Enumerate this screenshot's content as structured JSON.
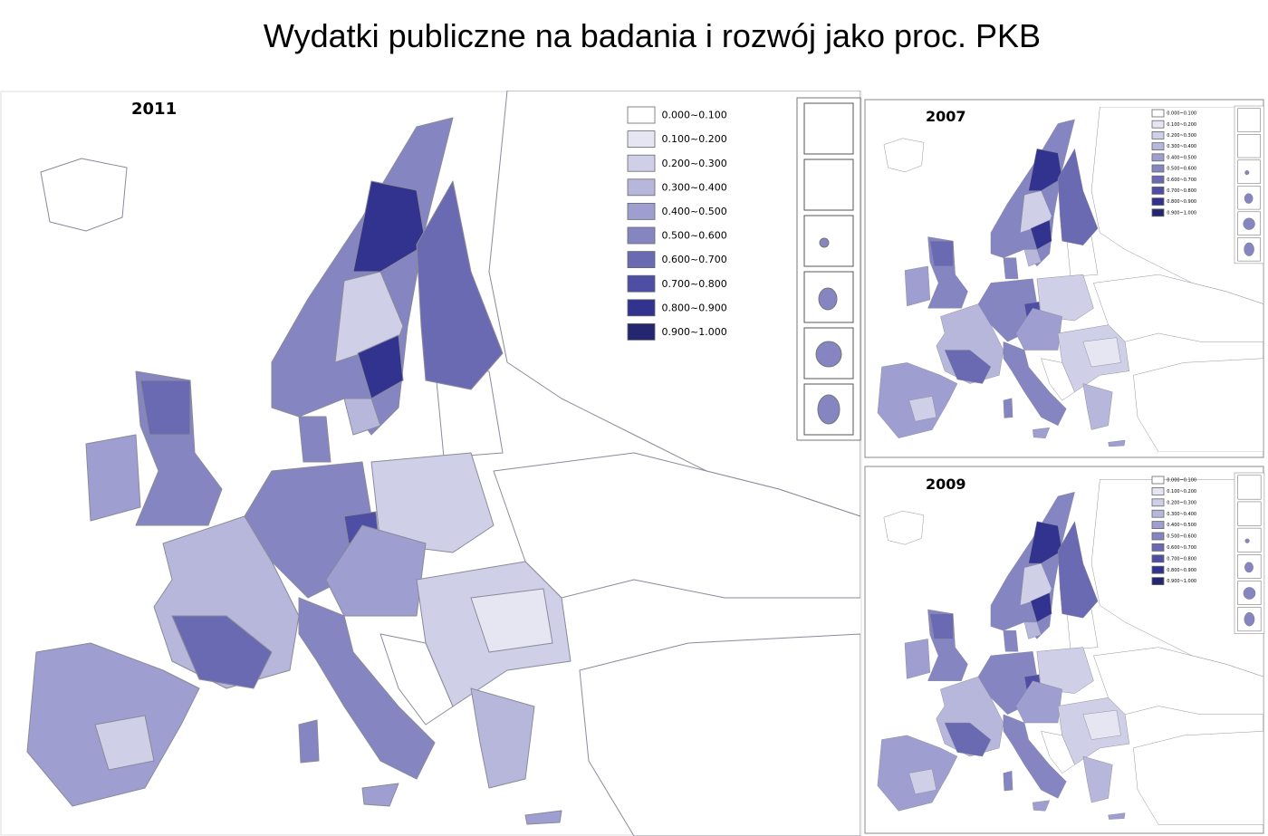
{
  "title": "Wydatki publiczne na badania i rozwój jako proc. PKB",
  "maps": [
    {
      "year": "2011"
    },
    {
      "year": "2007"
    },
    {
      "year": "2009"
    }
  ],
  "legend": [
    {
      "label": "0.000~0.100",
      "color": "#ffffff"
    },
    {
      "label": "0.100~0.200",
      "color": "#e6e6f3"
    },
    {
      "label": "0.200~0.300",
      "color": "#cfcfe8"
    },
    {
      "label": "0.300~0.400",
      "color": "#b7b7dc"
    },
    {
      "label": "0.400~0.500",
      "color": "#9e9ed0"
    },
    {
      "label": "0.500~0.600",
      "color": "#8585c2"
    },
    {
      "label": "0.600~0.700",
      "color": "#6a6ab3"
    },
    {
      "label": "0.700~0.800",
      "color": "#4e4ea4"
    },
    {
      "label": "0.800~0.900",
      "color": "#32328f"
    },
    {
      "label": "0.900~1.000",
      "color": "#252670"
    }
  ]
}
